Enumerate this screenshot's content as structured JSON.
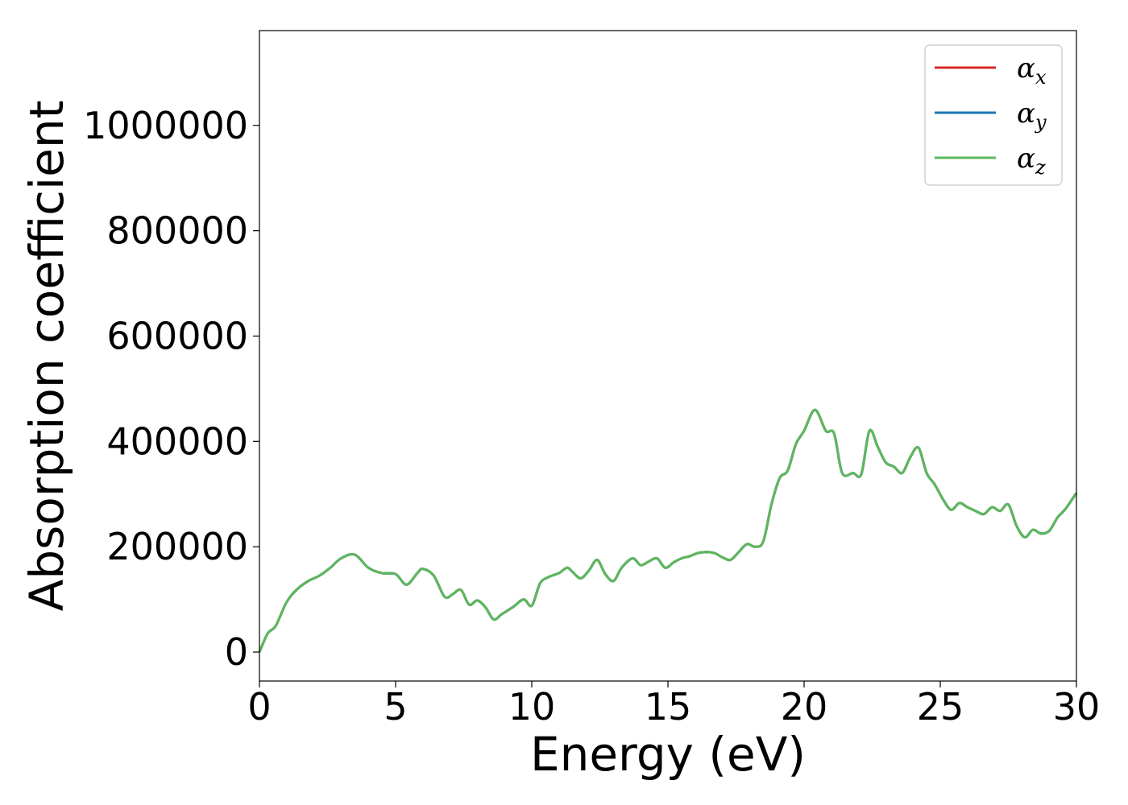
{
  "chart_data": {
    "type": "line",
    "title": "",
    "xlabel": "Energy (eV)",
    "ylabel": "Absorption coefficient",
    "xlim": [
      0,
      30
    ],
    "ylim": [
      -55000,
      1180000
    ],
    "xticks": [
      0,
      5,
      10,
      15,
      20,
      25,
      30
    ],
    "yticks": [
      0,
      200000,
      400000,
      600000,
      800000,
      1000000
    ],
    "grid": false,
    "legend_position": "top-right",
    "x": [
      0,
      0.3,
      0.6,
      1.0,
      1.4,
      1.8,
      2.2,
      2.6,
      3.0,
      3.5,
      4.0,
      4.5,
      5.0,
      5.4,
      5.8,
      6.0,
      6.4,
      6.8,
      7.1,
      7.4,
      7.7,
      8.0,
      8.3,
      8.6,
      8.9,
      9.3,
      9.7,
      10.0,
      10.3,
      10.6,
      11.0,
      11.3,
      11.5,
      11.8,
      12.1,
      12.4,
      12.7,
      13.0,
      13.3,
      13.7,
      14.0,
      14.3,
      14.6,
      14.9,
      15.2,
      15.5,
      15.8,
      16.1,
      16.4,
      16.7,
      17.0,
      17.3,
      17.6,
      17.9,
      18.2,
      18.5,
      18.8,
      19.1,
      19.4,
      19.7,
      20.0,
      20.4,
      20.8,
      21.1,
      21.4,
      21.8,
      22.1,
      22.4,
      22.7,
      23.0,
      23.3,
      23.6,
      23.9,
      24.2,
      24.5,
      24.8,
      25.1,
      25.4,
      25.7,
      26.0,
      26.3,
      26.6,
      26.9,
      27.2,
      27.5,
      27.8,
      28.1,
      28.4,
      28.7,
      29.0,
      29.3,
      29.6,
      30.0
    ],
    "series": [
      {
        "name": "x",
        "color": "#d62728",
        "y": [
          0,
          35000,
          50000,
          95000,
          120000,
          135000,
          145000,
          160000,
          178000,
          185000,
          160000,
          150000,
          148000,
          128000,
          150000,
          158000,
          145000,
          105000,
          110000,
          118000,
          90000,
          98000,
          85000,
          62000,
          72000,
          85000,
          100000,
          88000,
          130000,
          142000,
          150000,
          160000,
          152000,
          140000,
          155000,
          175000,
          148000,
          135000,
          160000,
          178000,
          165000,
          172000,
          178000,
          160000,
          170000,
          178000,
          182000,
          188000,
          190000,
          188000,
          180000,
          175000,
          190000,
          205000,
          200000,
          210000,
          280000,
          330000,
          345000,
          395000,
          420000,
          460000,
          420000,
          415000,
          340000,
          340000,
          338000,
          420000,
          390000,
          360000,
          352000,
          340000,
          370000,
          388000,
          340000,
          318000,
          290000,
          270000,
          283000,
          275000,
          268000,
          262000,
          275000,
          268000,
          280000,
          240000,
          218000,
          232000,
          225000,
          230000,
          255000,
          272000,
          302000
        ]
      },
      {
        "name": "y",
        "color": "#1f77b4",
        "y": [
          0,
          35000,
          50000,
          95000,
          120000,
          135000,
          145000,
          160000,
          178000,
          185000,
          160000,
          150000,
          148000,
          128000,
          150000,
          158000,
          145000,
          105000,
          110000,
          118000,
          90000,
          98000,
          85000,
          62000,
          72000,
          85000,
          100000,
          88000,
          130000,
          142000,
          150000,
          160000,
          152000,
          140000,
          155000,
          175000,
          148000,
          135000,
          160000,
          178000,
          165000,
          172000,
          178000,
          160000,
          170000,
          178000,
          182000,
          188000,
          190000,
          188000,
          180000,
          175000,
          190000,
          205000,
          200000,
          210000,
          280000,
          330000,
          345000,
          395000,
          420000,
          460000,
          420000,
          415000,
          340000,
          340000,
          338000,
          420000,
          390000,
          360000,
          352000,
          340000,
          370000,
          388000,
          340000,
          318000,
          290000,
          270000,
          283000,
          275000,
          268000,
          262000,
          275000,
          268000,
          280000,
          240000,
          218000,
          232000,
          225000,
          230000,
          255000,
          272000,
          302000
        ]
      },
      {
        "name": "z",
        "color": "#5cb85c",
        "y": [
          0,
          35000,
          50000,
          95000,
          120000,
          135000,
          145000,
          160000,
          178000,
          185000,
          160000,
          150000,
          148000,
          128000,
          150000,
          158000,
          145000,
          105000,
          110000,
          118000,
          90000,
          98000,
          85000,
          62000,
          72000,
          85000,
          100000,
          88000,
          130000,
          142000,
          150000,
          160000,
          152000,
          140000,
          155000,
          175000,
          148000,
          135000,
          160000,
          178000,
          165000,
          172000,
          178000,
          160000,
          170000,
          178000,
          182000,
          188000,
          190000,
          188000,
          180000,
          175000,
          190000,
          205000,
          200000,
          210000,
          280000,
          330000,
          345000,
          395000,
          420000,
          460000,
          420000,
          415000,
          340000,
          340000,
          338000,
          420000,
          390000,
          360000,
          352000,
          340000,
          370000,
          388000,
          340000,
          318000,
          290000,
          270000,
          283000,
          275000,
          268000,
          262000,
          275000,
          268000,
          280000,
          240000,
          218000,
          232000,
          225000,
          230000,
          255000,
          272000,
          302000
        ]
      }
    ]
  }
}
